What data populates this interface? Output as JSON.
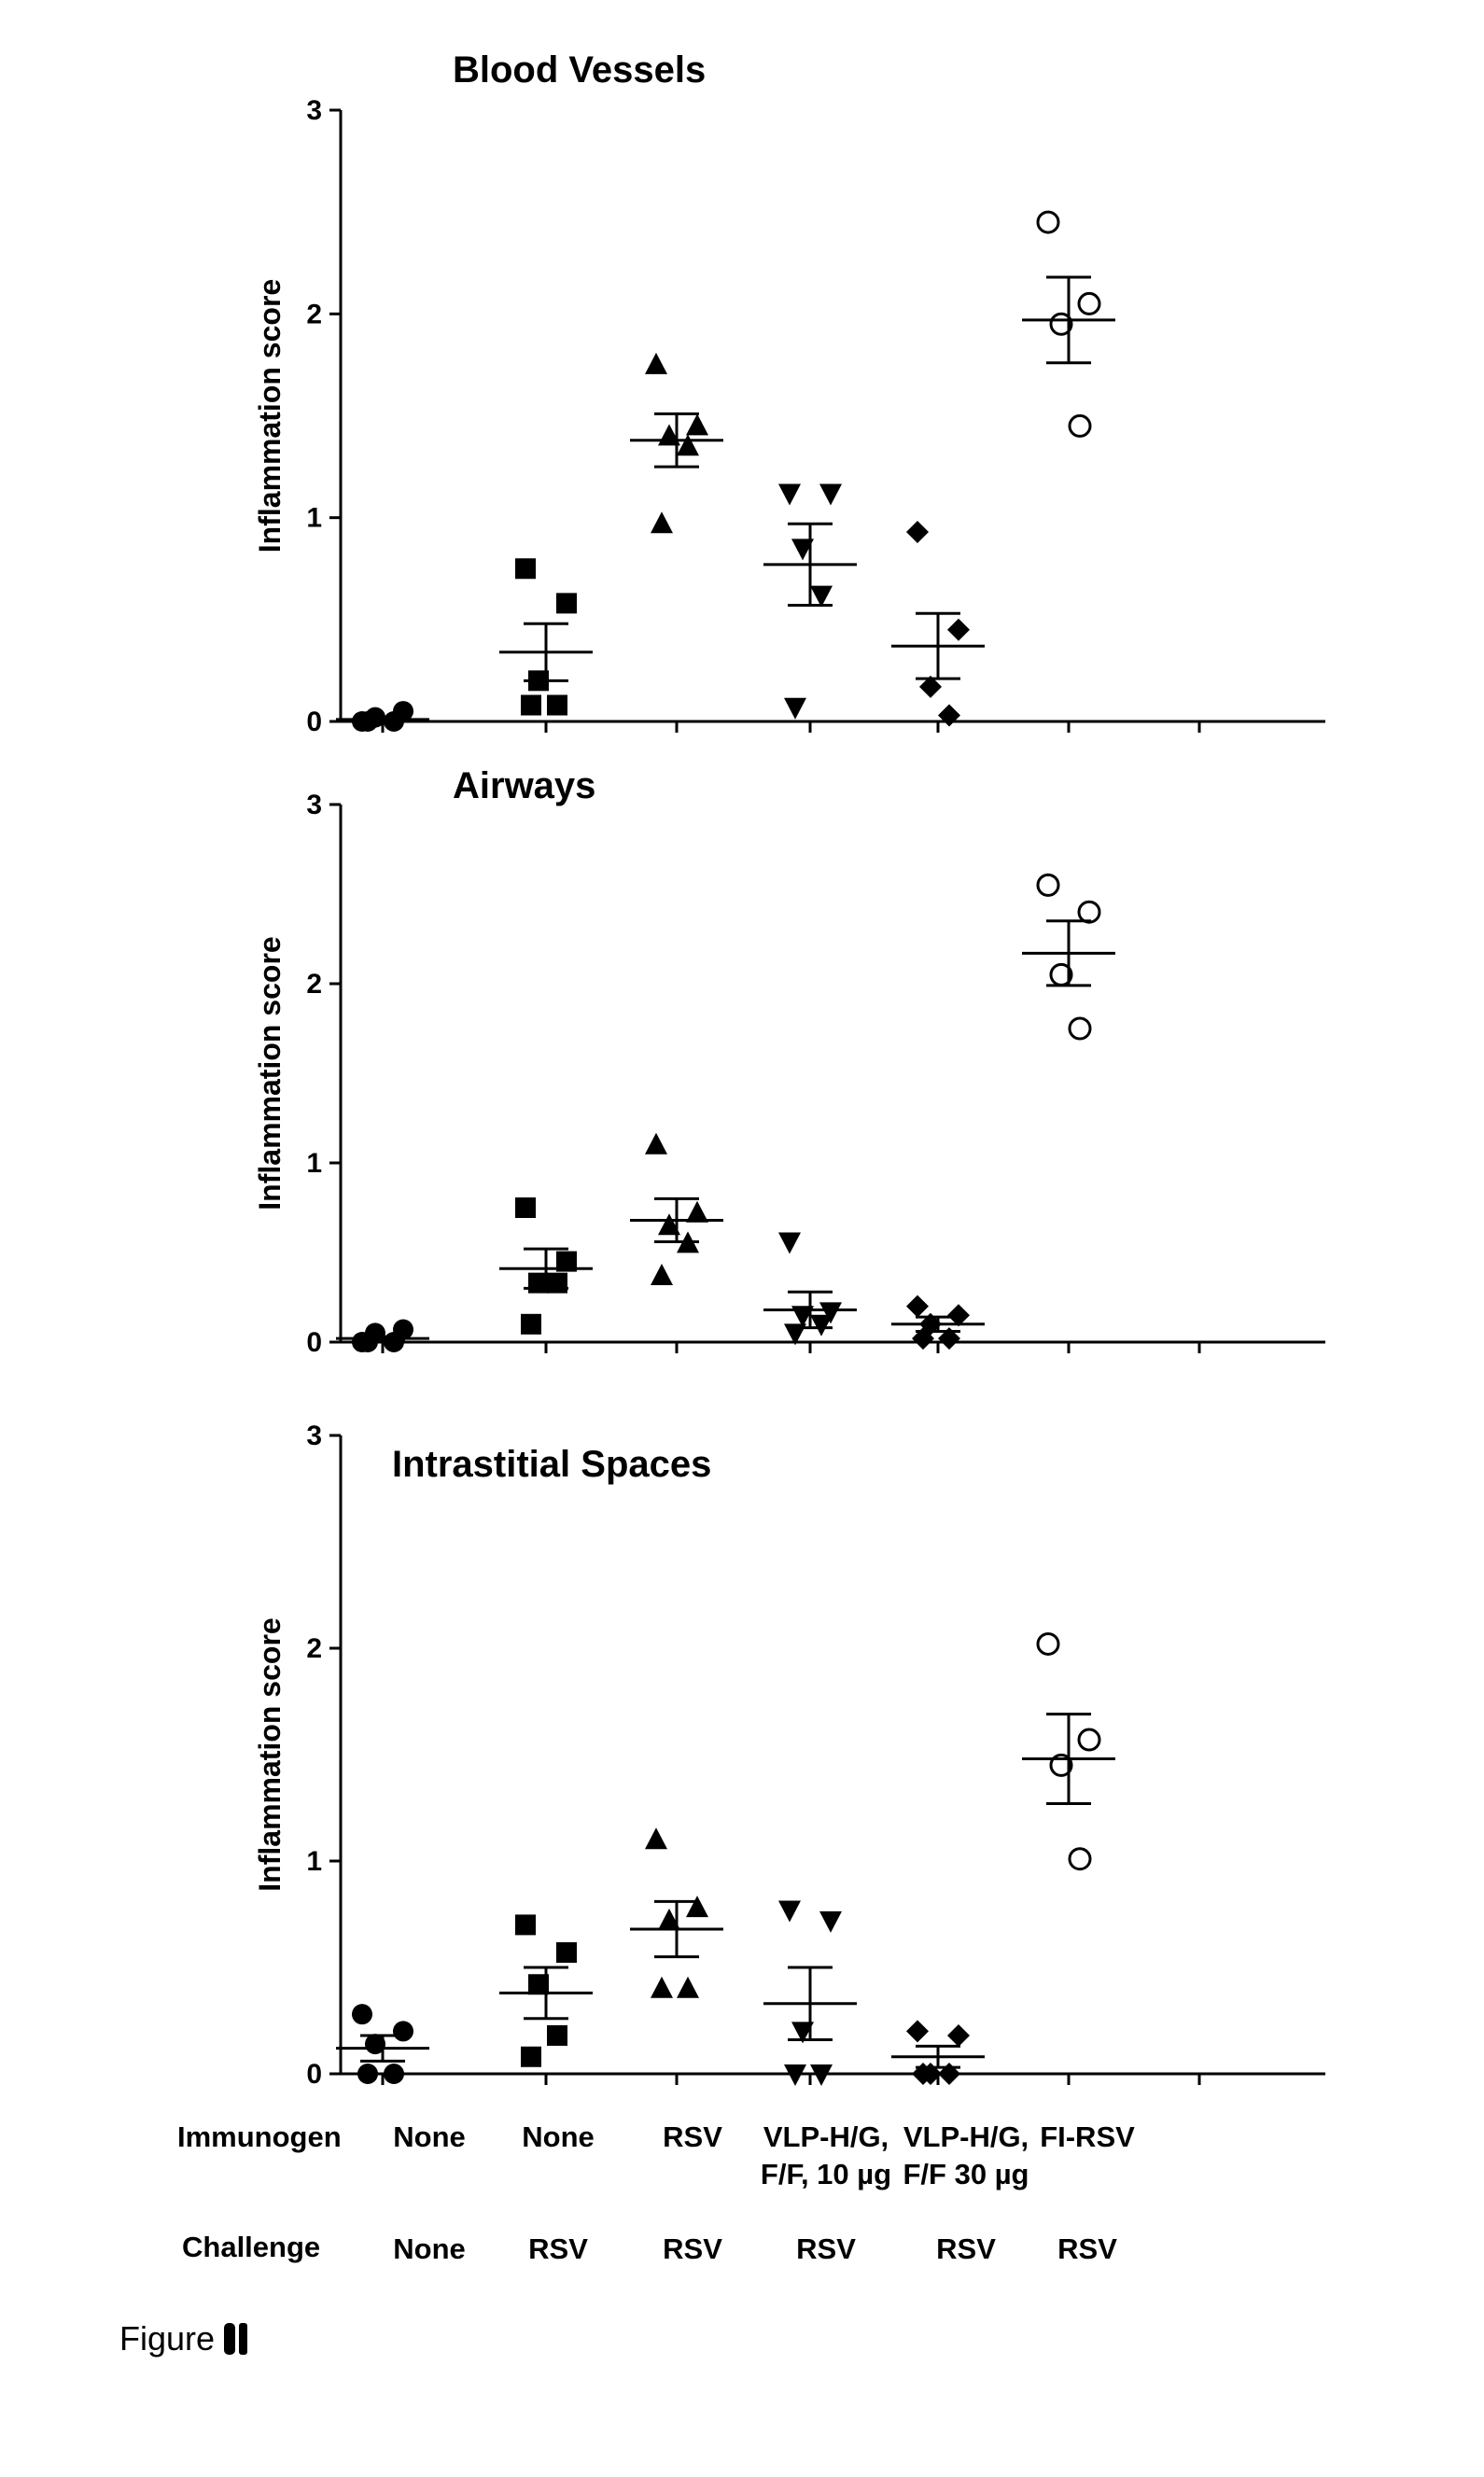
{
  "figure": {
    "caption": "Figure",
    "caption_mark": "●●"
  },
  "row_labels": {
    "immunogen": "Immunogen",
    "challenge": "Challenge"
  },
  "groups": [
    {
      "immunogen": [
        "None"
      ],
      "challenge": "None",
      "marker": "circle"
    },
    {
      "immunogen": [
        "None"
      ],
      "challenge": "RSV",
      "marker": "square"
    },
    {
      "immunogen": [
        "RSV"
      ],
      "challenge": "RSV",
      "marker": "triangle"
    },
    {
      "immunogen": [
        "VLP-H/G,",
        "F/F, 10 µg"
      ],
      "challenge": "RSV",
      "marker": "triangle-down"
    },
    {
      "immunogen": [
        "VLP-H/G,",
        "F/F  30 µg"
      ],
      "challenge": "RSV",
      "marker": "diamond"
    },
    {
      "immunogen": [
        "FI-RSV"
      ],
      "challenge": "RSV",
      "marker": "open-circle"
    }
  ],
  "chart_data": [
    {
      "type": "scatter",
      "title": "Blood Vessels",
      "ylabel": "Inflammation score",
      "ylim": [
        0,
        3
      ],
      "yticks": [
        "0",
        "1",
        "2",
        "3"
      ],
      "series": [
        {
          "points": [
            0.0,
            0.05,
            0.02,
            0.0,
            0.0
          ],
          "mean": 0.01,
          "sem": 0.01
        },
        {
          "points": [
            0.75,
            0.58,
            0.2,
            0.08,
            0.08
          ],
          "mean": 0.34,
          "sem": 0.14
        },
        {
          "points": [
            1.75,
            1.45,
            1.4,
            1.35,
            0.97
          ],
          "mean": 1.38,
          "sem": 0.13
        },
        {
          "points": [
            1.12,
            1.12,
            0.85,
            0.62,
            0.07
          ],
          "mean": 0.77,
          "sem": 0.2
        },
        {
          "points": [
            0.93,
            0.45,
            0.17,
            0.03
          ],
          "mean": 0.37,
          "sem": 0.16
        },
        {
          "points": [
            2.45,
            2.05,
            1.95,
            1.45
          ],
          "mean": 1.97,
          "sem": 0.21
        }
      ]
    },
    {
      "type": "scatter",
      "title": "Airways",
      "ylabel": "Inflammation score",
      "ylim": [
        0,
        3
      ],
      "yticks": [
        "0",
        "1",
        "2",
        "3"
      ],
      "series": [
        {
          "points": [
            0.0,
            0.07,
            0.05,
            0.0,
            0.0
          ],
          "mean": 0.02,
          "sem": 0.01
        },
        {
          "points": [
            0.75,
            0.45,
            0.33,
            0.33,
            0.1
          ],
          "mean": 0.41,
          "sem": 0.11
        },
        {
          "points": [
            1.1,
            0.72,
            0.65,
            0.55,
            0.37
          ],
          "mean": 0.68,
          "sem": 0.12
        },
        {
          "points": [
            0.56,
            0.17,
            0.15,
            0.1,
            0.05
          ],
          "mean": 0.18,
          "sem": 0.1
        },
        {
          "points": [
            0.2,
            0.15,
            0.1,
            0.02,
            0.02
          ],
          "mean": 0.1,
          "sem": 0.04
        },
        {
          "points": [
            2.55,
            2.4,
            2.05,
            1.75
          ],
          "mean": 2.17,
          "sem": 0.18
        }
      ]
    },
    {
      "type": "scatter",
      "title": "Intrastitial Spaces",
      "ylabel": "Inflammation score",
      "ylim": [
        0,
        3
      ],
      "yticks": [
        "0",
        "1",
        "2",
        "3"
      ],
      "series": [
        {
          "points": [
            0.28,
            0.2,
            0.14,
            0.0,
            0.0
          ],
          "mean": 0.12,
          "sem": 0.06
        },
        {
          "points": [
            0.7,
            0.57,
            0.42,
            0.18,
            0.08
          ],
          "mean": 0.38,
          "sem": 0.12
        },
        {
          "points": [
            1.1,
            0.78,
            0.72,
            0.4,
            0.4
          ],
          "mean": 0.68,
          "sem": 0.13
        },
        {
          "points": [
            0.77,
            0.72,
            0.2,
            0.0,
            0.0
          ],
          "mean": 0.33,
          "sem": 0.17
        },
        {
          "points": [
            0.2,
            0.18,
            0.0,
            0.0,
            0.0
          ],
          "mean": 0.08,
          "sem": 0.05
        },
        {
          "points": [
            2.02,
            1.57,
            1.45,
            1.01
          ],
          "mean": 1.48,
          "sem": 0.21
        }
      ]
    }
  ]
}
